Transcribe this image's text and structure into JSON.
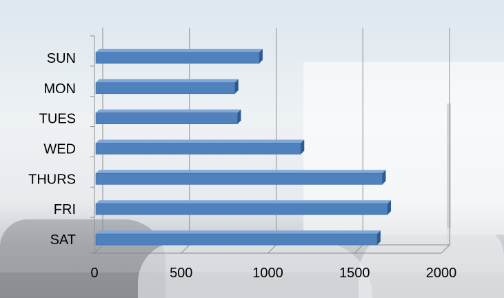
{
  "chart_data": {
    "type": "bar",
    "orientation": "horizontal",
    "style": "3d",
    "categories": [
      "SUN",
      "MON",
      "TUES",
      "WED",
      "THURS",
      "FRI",
      "SAT"
    ],
    "values": [
      950,
      810,
      825,
      1190,
      1660,
      1690,
      1630
    ],
    "title": "",
    "xlabel": "",
    "ylabel": "",
    "xlim": [
      0,
      2000
    ],
    "xticks": [
      "0",
      "500",
      "1000",
      "1500",
      "2000"
    ],
    "grid": "vertical",
    "legend": "none",
    "bar_color": "#4f81bd",
    "bar_top_color": "#7fa7d8",
    "bar_side_color": "#2f5a8e",
    "gridline_color": "#8c8c8c"
  }
}
